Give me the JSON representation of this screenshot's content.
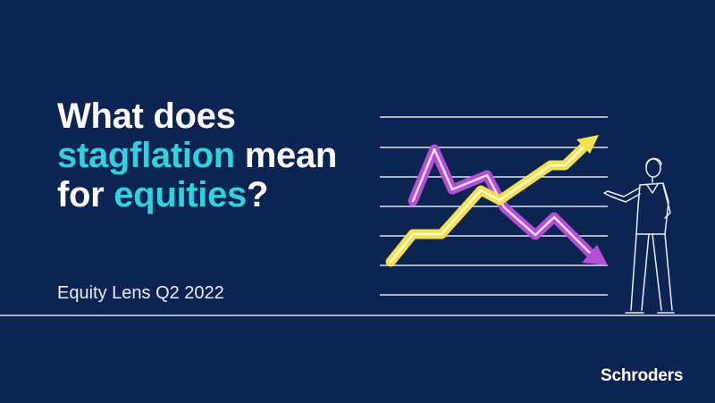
{
  "headline": {
    "part1": "What does",
    "accent1": "stagflation",
    "part2": " mean",
    "part3": "for ",
    "accent2": "equities",
    "part4": "?"
  },
  "subtitle": "Equity Lens Q2 2022",
  "brand": "Schroders",
  "colors": {
    "background": "#0c2452",
    "accent_text": "#2fd3e0",
    "up_arrow": "#f4e24a",
    "down_arrow": "#b44fd6",
    "lines": "#ffffff"
  },
  "illustration": {
    "up_arrow_icon": "trend-up-arrow-icon",
    "down_arrow_icon": "trend-down-arrow-icon",
    "person_icon": "presenter-person-icon"
  }
}
